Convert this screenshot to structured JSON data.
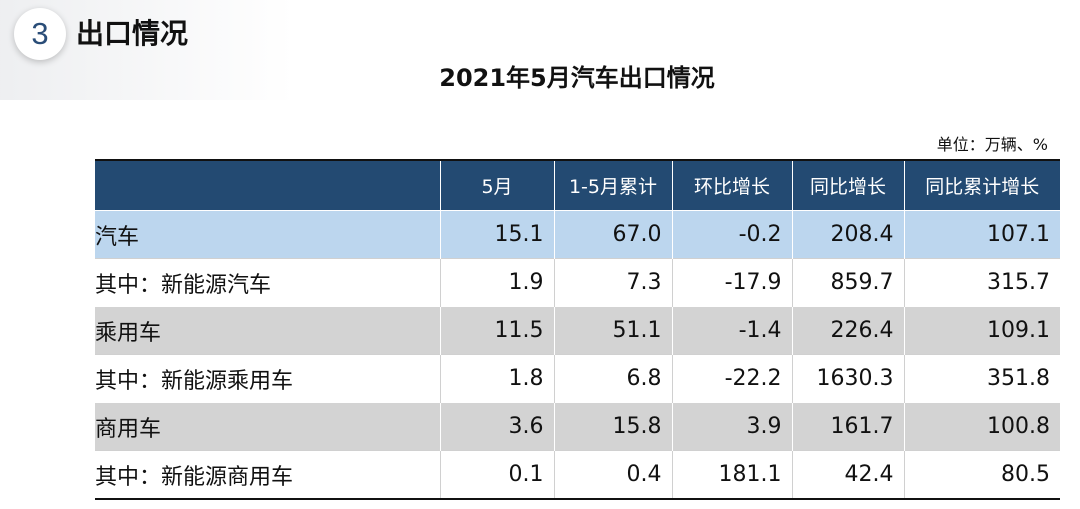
{
  "section": {
    "number": "3",
    "title": "出口情况"
  },
  "table_title": "2021年5月汽车出口情况",
  "unit_note": "单位：万辆、%",
  "table": {
    "headers": [
      "",
      "5月",
      "1-5月累计",
      "环比增长",
      "同比增长",
      "同比累计增长"
    ],
    "rows": [
      {
        "label": "汽车",
        "values": [
          "15.1",
          "67.0",
          "-0.2",
          "208.4",
          "107.1"
        ]
      },
      {
        "label": "其中：新能源汽车",
        "values": [
          "1.9",
          "7.3",
          "-17.9",
          "859.7",
          "315.7"
        ]
      },
      {
        "label": "乘用车",
        "values": [
          "11.5",
          "51.1",
          "-1.4",
          "226.4",
          "109.1"
        ]
      },
      {
        "label": "其中：新能源乘用车",
        "values": [
          "1.8",
          "6.8",
          "-22.2",
          "1630.3",
          "351.8"
        ]
      },
      {
        "label": "商用车",
        "values": [
          "3.6",
          "15.8",
          "3.9",
          "161.7",
          "100.8"
        ]
      },
      {
        "label": "其中：新能源商用车",
        "values": [
          "0.1",
          "0.4",
          "181.1",
          "42.4",
          "80.5"
        ]
      }
    ]
  },
  "colors": {
    "header_bg": "#234a72",
    "row_total": "#bcd6ee",
    "row_category": "#d3d3d3",
    "row_sub": "#ffffff",
    "badge_number": "#2a4d78"
  }
}
